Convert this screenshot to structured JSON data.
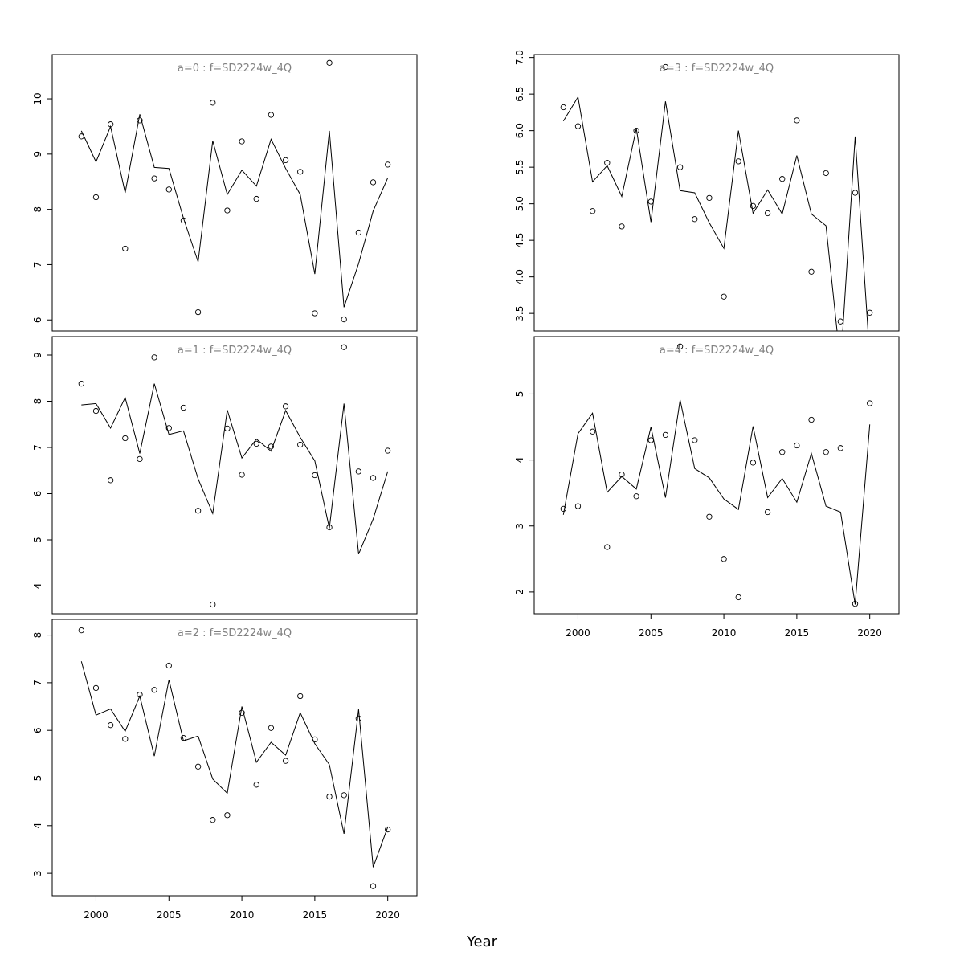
{
  "figure": {
    "xlabel": "Year"
  },
  "chart_data": [
    {
      "type": "line",
      "title": "a=0 : f=SD2224w_4Q",
      "xlabel": "",
      "ylabel": "",
      "xlim": [
        1997,
        2022
      ],
      "ylim": [
        5.8,
        10.8
      ],
      "xticks": [
        2000,
        2005,
        2010,
        2015,
        2020
      ],
      "yticks": [
        6,
        7,
        8,
        9,
        10
      ],
      "grid": false,
      "x": [
        1999,
        2000,
        2001,
        2002,
        2003,
        2004,
        2005,
        2006,
        2007,
        2008,
        2009,
        2010,
        2011,
        2012,
        2013,
        2014,
        2015,
        2016,
        2017,
        2018,
        2019,
        2020
      ],
      "series": [
        {
          "style": "line",
          "values": [
            9.42,
            8.86,
            9.5,
            8.3,
            9.72,
            8.76,
            8.74,
            7.84,
            7.05,
            9.24,
            8.27,
            8.71,
            8.42,
            9.27,
            8.74,
            8.27,
            6.83,
            9.42,
            6.23,
            7.02,
            7.97,
            8.57
          ]
        },
        {
          "style": "points",
          "values": [
            9.32,
            8.22,
            9.54,
            7.29,
            9.61,
            8.56,
            8.36,
            7.8,
            6.14,
            9.93,
            7.98,
            9.23,
            8.19,
            9.71,
            8.89,
            8.68,
            6.12,
            10.65,
            6.01,
            7.58,
            8.49,
            8.81
          ]
        }
      ]
    },
    {
      "type": "line",
      "title": "a=1 : f=SD2224w_4Q",
      "xlabel": "",
      "ylabel": "",
      "xlim": [
        1997,
        2022
      ],
      "ylim": [
        3.4,
        9.4
      ],
      "xticks": [
        2000,
        2005,
        2010,
        2015,
        2020
      ],
      "yticks": [
        4,
        5,
        6,
        7,
        8,
        9
      ],
      "grid": false,
      "x": [
        1999,
        2000,
        2001,
        2002,
        2003,
        2004,
        2005,
        2006,
        2007,
        2008,
        2009,
        2010,
        2011,
        2012,
        2013,
        2014,
        2015,
        2016,
        2017,
        2018,
        2019,
        2020
      ],
      "series": [
        {
          "style": "line",
          "values": [
            7.92,
            7.95,
            7.42,
            8.08,
            6.87,
            8.38,
            7.28,
            7.36,
            6.32,
            5.57,
            7.81,
            6.77,
            7.18,
            6.92,
            7.8,
            7.22,
            6.71,
            5.25,
            7.95,
            4.69,
            5.45,
            6.48
          ]
        },
        {
          "style": "points",
          "values": [
            8.38,
            7.79,
            6.29,
            7.2,
            6.75,
            8.95,
            7.42,
            7.86,
            5.63,
            3.6,
            7.41,
            6.41,
            7.08,
            7.02,
            7.89,
            7.06,
            6.4,
            5.27,
            9.17,
            6.48,
            6.34,
            6.93
          ]
        }
      ]
    },
    {
      "type": "line",
      "title": "a=2 : f=SD2224w_4Q",
      "xlabel": "",
      "ylabel": "",
      "xlim": [
        1997,
        2022
      ],
      "ylim": [
        2.53,
        8.33
      ],
      "xticks": [
        2000,
        2005,
        2010,
        2015,
        2020
      ],
      "yticks": [
        3,
        4,
        5,
        6,
        7,
        8
      ],
      "grid": false,
      "x": [
        1999,
        2000,
        2001,
        2002,
        2003,
        2004,
        2005,
        2006,
        2007,
        2008,
        2009,
        2010,
        2011,
        2012,
        2013,
        2014,
        2015,
        2016,
        2017,
        2018,
        2019,
        2020
      ],
      "series": [
        {
          "style": "line",
          "values": [
            7.45,
            6.32,
            6.45,
            5.98,
            6.72,
            5.46,
            7.06,
            5.78,
            5.88,
            4.98,
            4.68,
            6.5,
            5.33,
            5.75,
            5.48,
            6.37,
            5.72,
            5.28,
            3.83,
            6.44,
            3.13,
            3.97
          ]
        },
        {
          "style": "points",
          "values": [
            8.1,
            6.89,
            6.11,
            5.82,
            6.75,
            6.85,
            7.36,
            5.84,
            5.24,
            4.12,
            4.22,
            6.37,
            4.86,
            6.05,
            5.36,
            6.72,
            5.81,
            4.61,
            4.64,
            6.25,
            2.73,
            3.92
          ]
        }
      ]
    },
    {
      "type": "line",
      "title": "a=3 : f=SD2224w_4Q",
      "xlabel": "",
      "ylabel": "",
      "xlim": [
        1997,
        2022
      ],
      "ylim": [
        3.26,
        7.04
      ],
      "xticks": [
        2000,
        2005,
        2010,
        2015,
        2020
      ],
      "yticks": [
        3.5,
        4.0,
        4.5,
        5.0,
        5.5,
        6.0,
        6.5,
        7.0
      ],
      "grid": false,
      "x": [
        1999,
        2000,
        2001,
        2002,
        2003,
        2004,
        2005,
        2006,
        2007,
        2008,
        2009,
        2010,
        2011,
        2012,
        2013,
        2014,
        2015,
        2016,
        2017,
        2018,
        2019,
        2020
      ],
      "series": [
        {
          "style": "line",
          "values": [
            6.13,
            6.46,
            5.3,
            5.52,
            5.1,
            6.03,
            4.75,
            6.4,
            5.18,
            5.15,
            4.74,
            4.39,
            6.0,
            4.87,
            5.19,
            4.86,
            5.66,
            4.86,
            4.7,
            2.8,
            5.92,
            2.9
          ]
        },
        {
          "style": "points",
          "values": [
            6.32,
            6.06,
            4.9,
            5.56,
            4.69,
            6.0,
            5.03,
            6.87,
            5.5,
            4.79,
            5.08,
            3.73,
            5.58,
            4.97,
            4.87,
            5.34,
            6.14,
            4.07,
            5.42,
            3.39,
            5.15,
            3.51
          ]
        }
      ]
    },
    {
      "type": "line",
      "title": "a=4 : f=SD2224w_4Q",
      "xlabel": "",
      "ylabel": "",
      "xlim": [
        1997,
        2022
      ],
      "ylim": [
        1.67,
        5.87
      ],
      "xticks": [
        2000,
        2005,
        2010,
        2015,
        2020
      ],
      "yticks": [
        2,
        3,
        4,
        5
      ],
      "grid": false,
      "x": [
        1999,
        2000,
        2001,
        2002,
        2003,
        2004,
        2005,
        2006,
        2007,
        2008,
        2009,
        2010,
        2011,
        2012,
        2013,
        2014,
        2015,
        2016,
        2017,
        2018,
        2019,
        2020
      ],
      "series": [
        {
          "style": "line",
          "values": [
            3.17,
            4.4,
            4.71,
            3.51,
            3.75,
            3.56,
            4.5,
            3.43,
            4.91,
            3.87,
            3.73,
            3.41,
            3.25,
            4.51,
            3.43,
            3.72,
            3.36,
            4.1,
            3.3,
            3.21,
            1.81,
            4.54
          ]
        },
        {
          "style": "points",
          "values": [
            3.26,
            3.3,
            4.43,
            2.68,
            3.78,
            3.45,
            4.3,
            4.38,
            5.72,
            4.3,
            3.14,
            2.5,
            1.92,
            3.96,
            3.21,
            4.12,
            4.22,
            4.61,
            4.12,
            4.18,
            1.82,
            4.86
          ]
        }
      ]
    }
  ]
}
